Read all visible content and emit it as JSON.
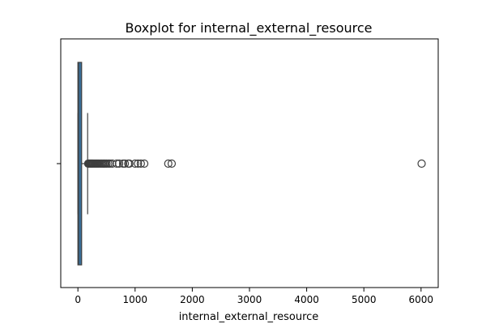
{
  "chart_data": {
    "type": "boxplot",
    "title": "Boxplot for internal_external_resource",
    "xlabel": "internal_external_resource",
    "ylabel": "",
    "orientation": "horizontal",
    "xlim": [
      -300,
      6300
    ],
    "xticks": [
      0,
      1000,
      2000,
      3000,
      4000,
      5000,
      6000
    ],
    "xtick_labels": [
      "0",
      "1000",
      "2000",
      "3000",
      "4000",
      "5000",
      "6000"
    ],
    "series": [
      {
        "min": 0,
        "q1": 0,
        "median": 10,
        "q3": 65,
        "whisker_high": 170,
        "outliers": [
          180,
          190,
          200,
          210,
          220,
          230,
          240,
          250,
          260,
          270,
          285,
          300,
          315,
          330,
          345,
          360,
          380,
          400,
          420,
          440,
          460,
          480,
          500,
          530,
          560,
          600,
          680,
          720,
          790,
          820,
          880,
          900,
          1000,
          1050,
          1100,
          1160,
          1580,
          1640,
          6010
        ]
      }
    ],
    "colors": {
      "box": "#3a6e97",
      "line": "#3f3f3f",
      "outlier_edge": "#3f3f3f"
    },
    "grid": false
  }
}
